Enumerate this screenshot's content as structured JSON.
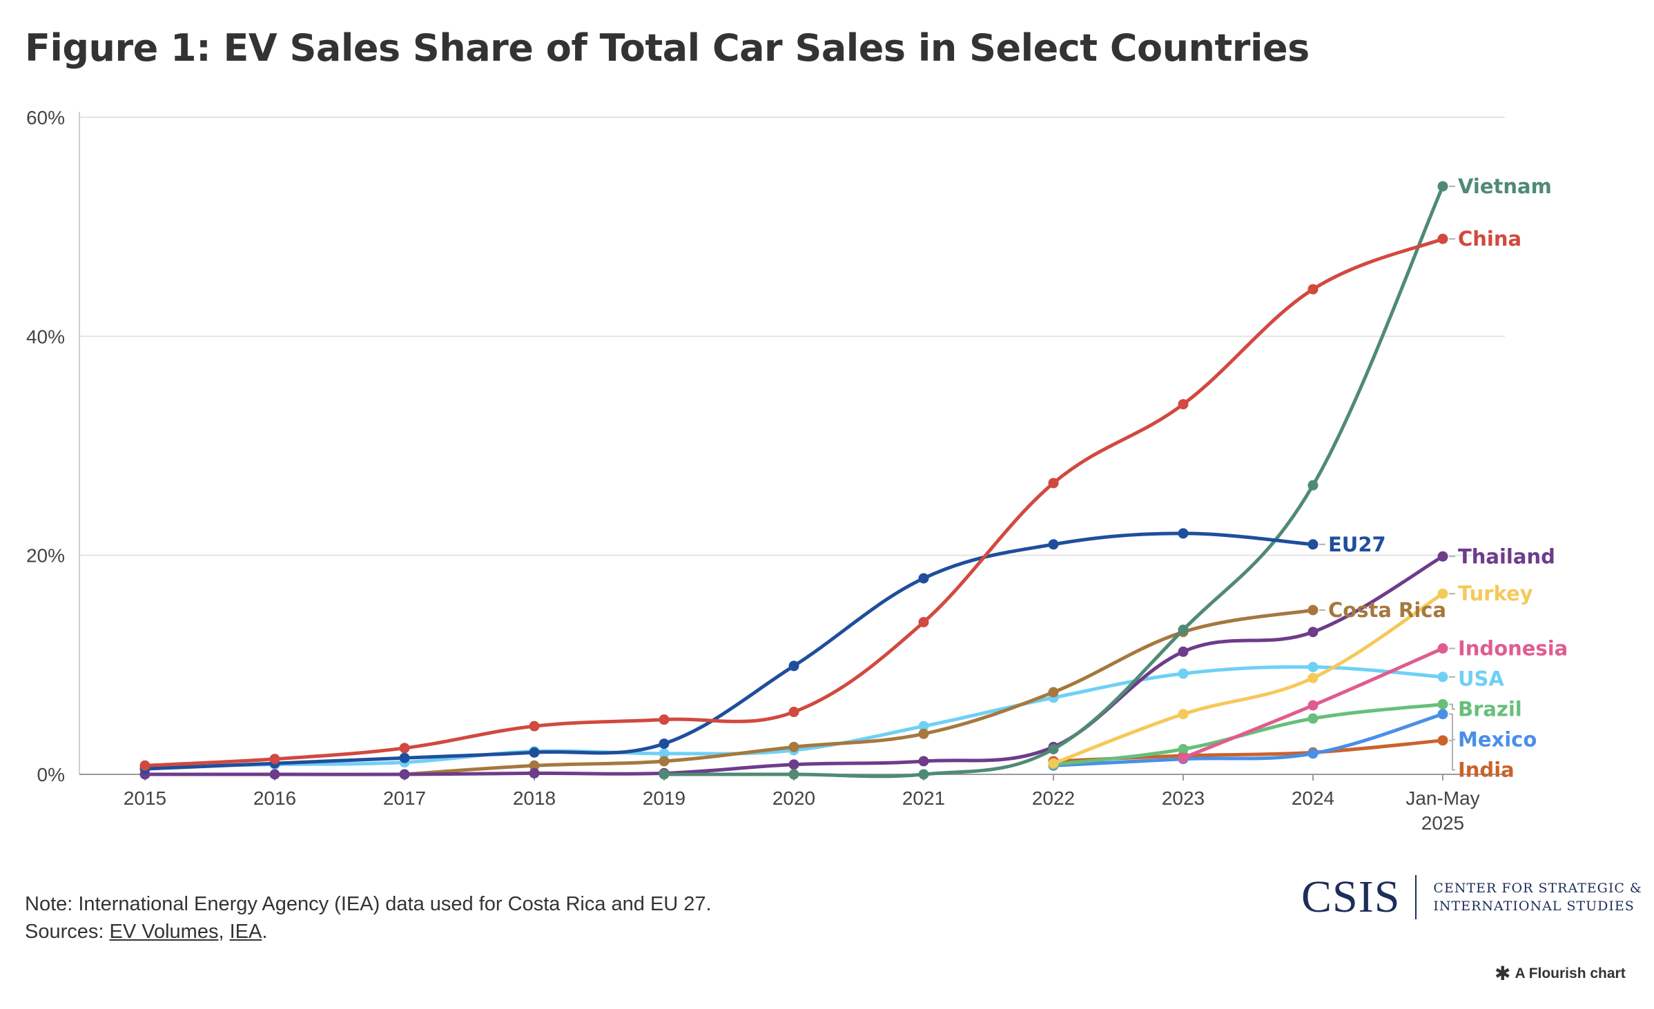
{
  "title": "Figure 1: EV Sales Share of Total Car Sales in Select Countries",
  "note": "Note: International Energy Agency (IEA) data used for Costa Rica and EU 27.",
  "sources": {
    "prefix": "Sources: ",
    "link1": "EV Volumes",
    "sep": ", ",
    "link2": "IEA",
    "suffix": "."
  },
  "logo": {
    "mark": "CSIS",
    "line1": "CENTER FOR STRATEGIC &",
    "line2": "INTERNATIONAL STUDIES"
  },
  "flourish": {
    "icon": "asterisk-icon",
    "label": "A Flourish chart"
  },
  "chart_data": {
    "type": "line",
    "x": [
      "2015",
      "2016",
      "2017",
      "2018",
      "2019",
      "2020",
      "2021",
      "2022",
      "2023",
      "2024",
      "Jan-May 2025"
    ],
    "ylim": [
      0,
      60
    ],
    "yticks": [
      "0%",
      "20%",
      "40%",
      "60%"
    ],
    "ytick_values": [
      0,
      20,
      40,
      60
    ],
    "grid": true,
    "series": [
      {
        "name": "China",
        "color": "#d1493f",
        "values": [
          0.8,
          1.4,
          2.4,
          4.4,
          5.0,
          5.7,
          13.9,
          26.6,
          33.8,
          44.3,
          48.9
        ]
      },
      {
        "name": "EU27",
        "color": "#1f4e9c",
        "values": [
          0.5,
          1.0,
          1.5,
          2.0,
          2.8,
          9.9,
          17.9,
          21.0,
          22.0,
          21.0,
          null
        ]
      },
      {
        "name": "Vietnam",
        "color": "#4f8a75",
        "values": [
          null,
          null,
          null,
          null,
          0.0,
          0.0,
          0.0,
          2.3,
          13.2,
          26.4,
          53.7
        ]
      },
      {
        "name": "Thailand",
        "color": "#6d3c8a",
        "values": [
          0.0,
          0.0,
          0.0,
          0.1,
          0.1,
          0.9,
          1.2,
          2.5,
          11.2,
          13.0,
          19.9
        ]
      },
      {
        "name": "Turkey",
        "color": "#f5c959",
        "values": [
          null,
          null,
          null,
          null,
          null,
          null,
          null,
          1.0,
          5.5,
          8.8,
          16.5
        ]
      },
      {
        "name": "Costa Rica",
        "color": "#a6783e",
        "values": [
          null,
          null,
          0.0,
          0.8,
          1.2,
          2.5,
          3.7,
          7.5,
          13.0,
          15.0,
          null
        ]
      },
      {
        "name": "Indonesia",
        "color": "#e05c8f",
        "values": [
          null,
          null,
          null,
          null,
          null,
          null,
          null,
          null,
          1.5,
          6.3,
          11.5
        ]
      },
      {
        "name": "USA",
        "color": "#6fd0f5",
        "values": [
          0.7,
          0.9,
          1.1,
          2.1,
          1.9,
          2.2,
          4.4,
          7.0,
          9.2,
          9.8,
          8.9
        ]
      },
      {
        "name": "Brazil",
        "color": "#66bf7a",
        "values": [
          null,
          null,
          null,
          null,
          null,
          null,
          null,
          0.9,
          2.3,
          5.1,
          6.4
        ]
      },
      {
        "name": "Mexico",
        "color": "#4a8fe7",
        "values": [
          null,
          null,
          null,
          null,
          null,
          null,
          null,
          0.8,
          1.4,
          1.9,
          5.5
        ]
      },
      {
        "name": "India",
        "color": "#c9632b",
        "values": [
          null,
          null,
          null,
          null,
          null,
          null,
          null,
          1.2,
          1.7,
          2.0,
          3.1
        ]
      }
    ]
  }
}
